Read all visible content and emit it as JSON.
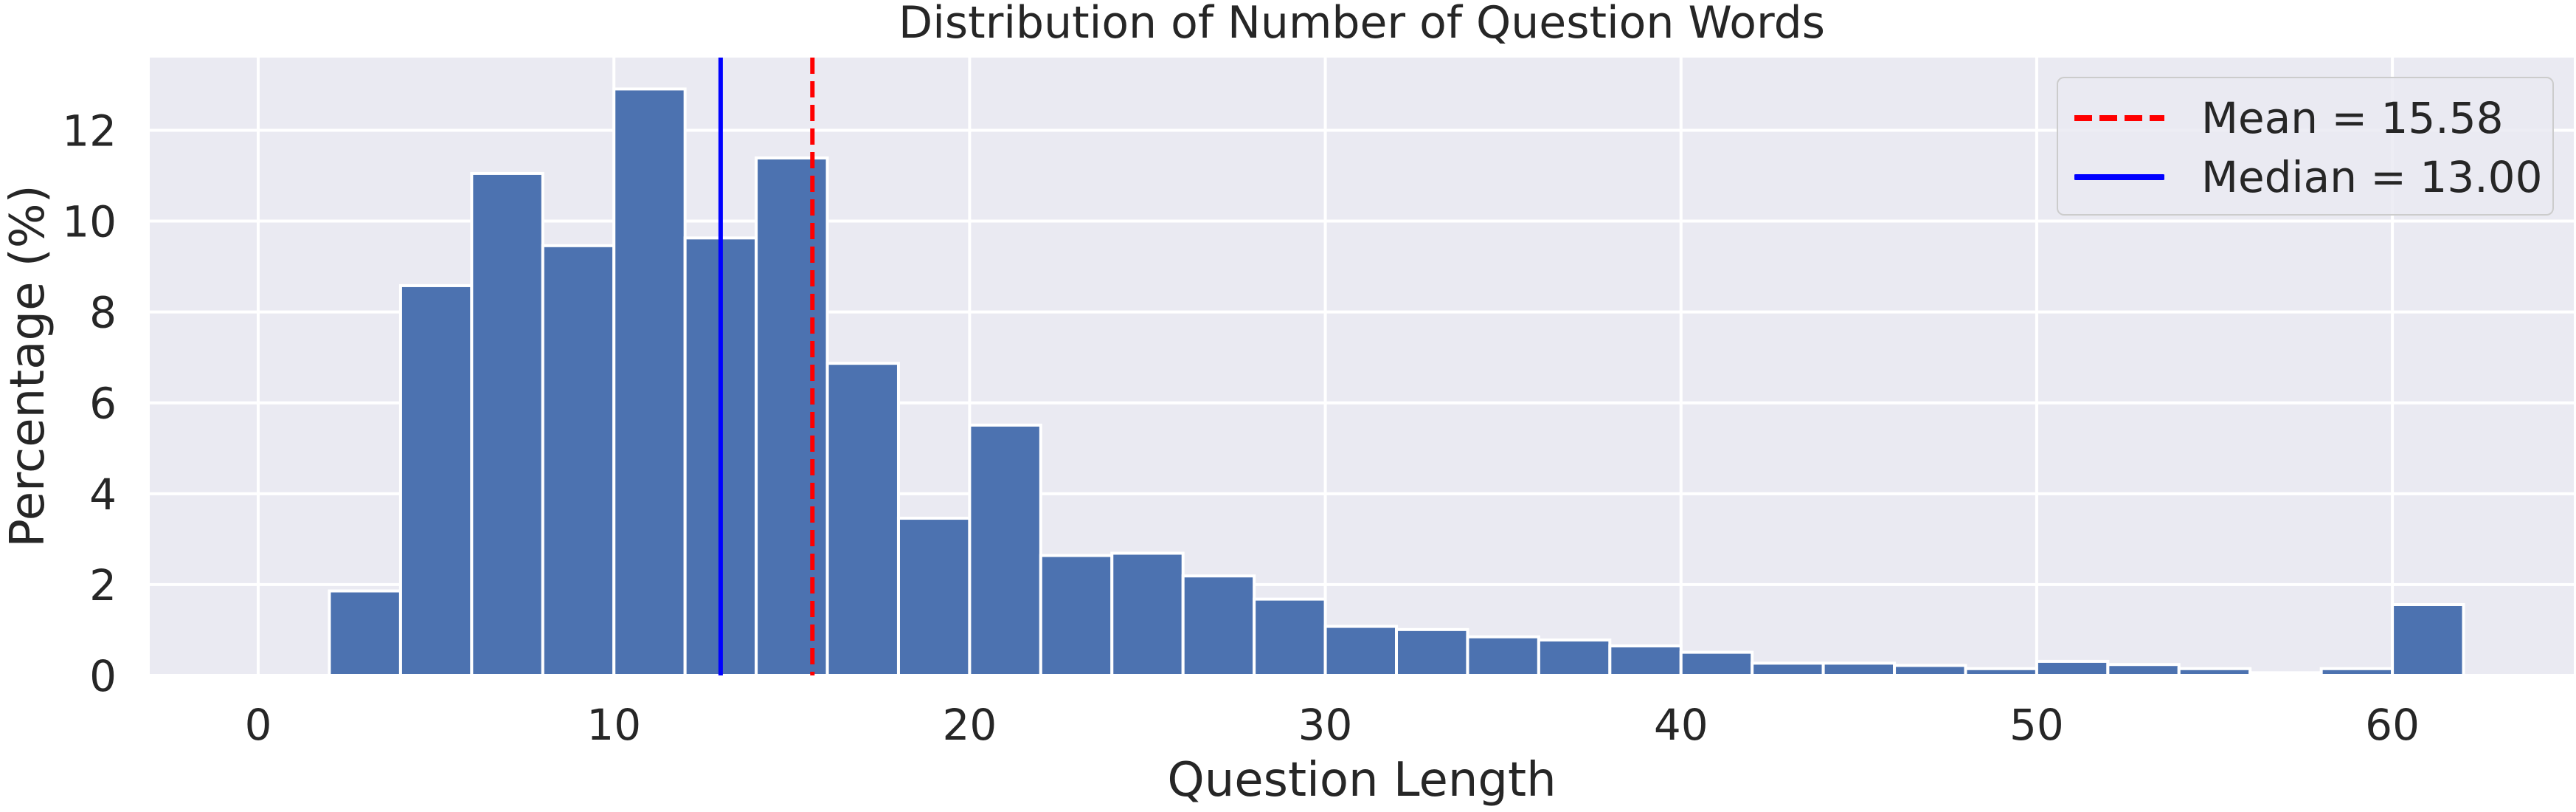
{
  "chart_data": {
    "type": "bar",
    "title": "Distribution of Number of Question Words",
    "xlabel": "Question Length",
    "ylabel": "Percentage (%)",
    "bin_width": 2,
    "bin_edges": [
      2,
      4,
      6,
      8,
      10,
      12,
      14,
      16,
      18,
      20,
      22,
      24,
      26,
      28,
      30,
      32,
      34,
      36,
      38,
      40,
      42,
      44,
      46,
      48,
      50,
      52,
      54,
      56,
      58,
      60,
      62
    ],
    "values": [
      1.86,
      8.58,
      11.05,
      9.46,
      12.91,
      9.63,
      11.39,
      6.87,
      3.46,
      5.51,
      2.64,
      2.69,
      2.19,
      1.68,
      1.08,
      1.01,
      0.85,
      0.78,
      0.65,
      0.51,
      0.27,
      0.27,
      0.22,
      0.15,
      0.31,
      0.24,
      0.15,
      0.06,
      0.15,
      1.56
    ],
    "xlim": [
      -3.05,
      65.1
    ],
    "ylim": [
      0,
      13.6
    ],
    "xticks": [
      0,
      10,
      20,
      30,
      40,
      50,
      60
    ],
    "yticks": [
      0,
      2,
      4,
      6,
      8,
      10,
      12
    ],
    "grid": true,
    "legend_position": "upper right",
    "reference_lines": [
      {
        "name": "Mean = 15.58",
        "x": 15.58,
        "style": "dashed",
        "color": "#ff0000"
      },
      {
        "name": "Median = 13.00",
        "x": 13.0,
        "style": "solid",
        "color": "#0000ff"
      }
    ],
    "colors": {
      "bar": "#4c72b0",
      "bar_edge": "#ffffff",
      "axes_background": "#eaeaf2",
      "grid": "#ffffff"
    }
  },
  "legend": {
    "mean_label": "Mean = 15.58",
    "median_label": "Median = 13.00"
  }
}
